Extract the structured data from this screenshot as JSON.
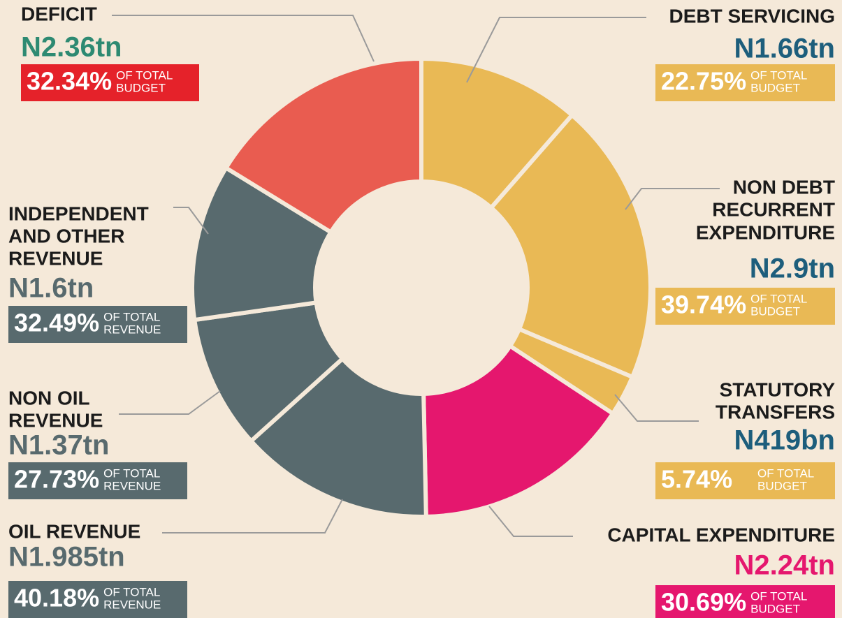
{
  "chart_data": {
    "type": "donut",
    "categories": [
      [
        "DEBT SERVICING"
      ],
      [
        "NON DEBT",
        "RECURRENT",
        "EXPENDITURE"
      ],
      [
        "STATUTORY",
        "TRANSFERS"
      ],
      [
        "CAPITAL EXPENDITURE"
      ],
      [
        "OIL REVENUE"
      ],
      [
        "NON OIL",
        "REVENUE"
      ],
      [
        "INDEPENDENT",
        "AND OTHER",
        "REVENUE"
      ],
      [
        "DEFICIT"
      ]
    ],
    "values": [
      1.66,
      2.9,
      0.419,
      2.24,
      1.985,
      1.37,
      1.6,
      2.36
    ],
    "value_labels": [
      "N1.66tn",
      "N2.9tn",
      "N419bn",
      "N2.24tn",
      "N1.985tn",
      "N1.37tn",
      "N1.6tn",
      "N2.36tn"
    ],
    "shares": [
      22.75,
      39.74,
      5.74,
      30.69,
      40.18,
      27.73,
      32.49,
      32.34
    ],
    "share_labels": [
      "22.75%",
      "39.74%",
      "5.74%",
      "30.69%",
      "40.18%",
      "27.73%",
      "32.49%",
      "32.34%"
    ],
    "share_bases": [
      [
        "OF TOTAL",
        "BUDGET"
      ],
      [
        "OF TOTAL",
        "BUDGET"
      ],
      [
        "OF TOTAL",
        "BUDGET"
      ],
      [
        "OF TOTAL",
        "BUDGET"
      ],
      [
        "OF TOTAL",
        "REVENUE"
      ],
      [
        "OF TOTAL",
        "REVENUE"
      ],
      [
        "OF TOTAL",
        "REVENUE"
      ],
      [
        "OF TOTAL",
        "BUDGET"
      ]
    ],
    "colors": [
      "#e9b955",
      "#e9b955",
      "#e9b955",
      "#e5176e",
      "#586a6e",
      "#586a6e",
      "#586a6e",
      "#e95c50"
    ],
    "value_label_colors": [
      "#1d5e7c",
      "#1d5e7c",
      "#1d5e7c",
      "#e5176e",
      "#586a6e",
      "#586a6e",
      "#586a6e",
      "#2e8a72"
    ],
    "box_colors": [
      "#e9b955",
      "#e9b955",
      "#e9b955",
      "#e5176e",
      "#586a6e",
      "#586a6e",
      "#586a6e",
      "#e5222a"
    ]
  }
}
